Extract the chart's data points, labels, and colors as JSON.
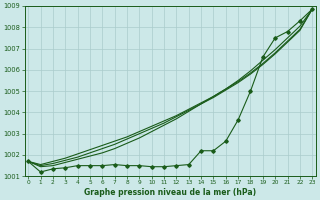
{
  "x": [
    0,
    1,
    2,
    3,
    4,
    5,
    6,
    7,
    8,
    9,
    10,
    11,
    12,
    13,
    14,
    15,
    16,
    17,
    18,
    19,
    20,
    21,
    22,
    23
  ],
  "line_smooth1": [
    1001.7,
    1001.55,
    1001.7,
    1001.85,
    1002.05,
    1002.25,
    1002.45,
    1002.65,
    1002.85,
    1003.1,
    1003.35,
    1003.6,
    1003.85,
    1004.15,
    1004.45,
    1004.75,
    1005.1,
    1005.45,
    1005.85,
    1006.3,
    1006.8,
    1007.35,
    1007.9,
    1008.85
  ],
  "line_smooth2": [
    1001.7,
    1001.5,
    1001.6,
    1001.75,
    1001.9,
    1002.1,
    1002.3,
    1002.5,
    1002.75,
    1003.0,
    1003.25,
    1003.5,
    1003.8,
    1004.1,
    1004.4,
    1004.7,
    1005.05,
    1005.4,
    1005.8,
    1006.25,
    1006.75,
    1007.3,
    1007.85,
    1008.85
  ],
  "line_smooth3": [
    1001.7,
    1001.45,
    1001.5,
    1001.65,
    1001.8,
    1001.95,
    1002.1,
    1002.3,
    1002.55,
    1002.8,
    1003.1,
    1003.4,
    1003.7,
    1004.05,
    1004.4,
    1004.75,
    1005.1,
    1005.5,
    1005.95,
    1006.45,
    1006.95,
    1007.5,
    1008.05,
    1008.85
  ],
  "line_marker": [
    1001.7,
    1001.2,
    1001.35,
    1001.4,
    1001.5,
    1001.5,
    1001.5,
    1001.55,
    1001.5,
    1001.5,
    1001.45,
    1001.45,
    1001.5,
    1001.55,
    1002.2,
    1002.2,
    1002.65,
    1003.65,
    1005.0,
    1006.6,
    1007.5,
    1007.8,
    1008.3,
    1008.85
  ],
  "ylim": [
    1001.0,
    1009.0
  ],
  "yticks": [
    1001,
    1002,
    1003,
    1004,
    1005,
    1006,
    1007,
    1008,
    1009
  ],
  "xlim": [
    -0.3,
    23.3
  ],
  "xticks": [
    0,
    1,
    2,
    3,
    4,
    5,
    6,
    7,
    8,
    9,
    10,
    11,
    12,
    13,
    14,
    15,
    16,
    17,
    18,
    19,
    20,
    21,
    22,
    23
  ],
  "line_color": "#1a5c1a",
  "bg_color": "#cce8e8",
  "grid_color": "#aacccc",
  "xlabel": "Graphe pression niveau de la mer (hPa)",
  "xlabel_color": "#1a5c1a"
}
